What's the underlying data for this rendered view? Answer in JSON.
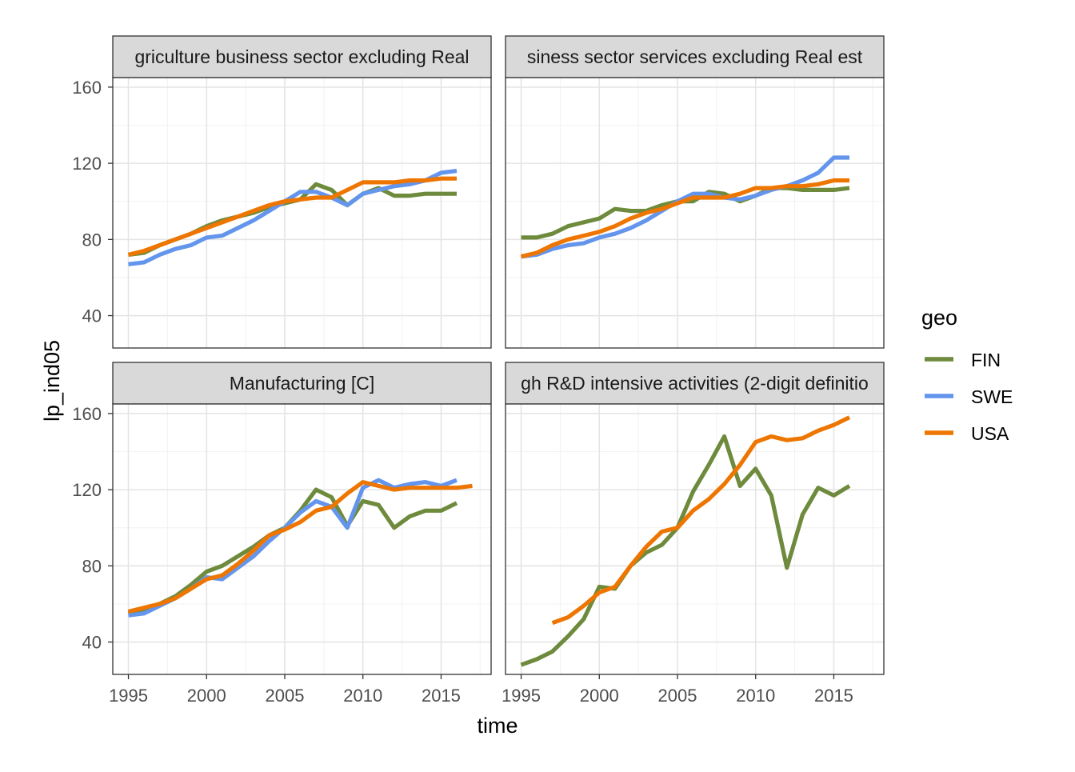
{
  "chart_data": {
    "type": "line",
    "layout": "facet-grid-2x2",
    "xlabel": "time",
    "ylabel": "lp_ind05",
    "xlim": [
      1994,
      2018.2
    ],
    "ylim": [
      23,
      165
    ],
    "x_ticks": [
      1995,
      2000,
      2005,
      2010,
      2015
    ],
    "x_tick_labels": [
      "1995",
      "2000",
      "2005",
      "2010",
      "2015"
    ],
    "y_ticks": [
      40,
      80,
      120,
      160
    ],
    "y_tick_labels": [
      "40",
      "80",
      "120",
      "160"
    ],
    "grid": true,
    "legend": {
      "title": "geo",
      "position": "right",
      "entries": [
        {
          "name": "FIN",
          "color": "#6e8b3d"
        },
        {
          "name": "SWE",
          "color": "#6495ed"
        },
        {
          "name": "USA",
          "color": "#ee7600"
        }
      ]
    },
    "panels": [
      {
        "strip": "griculture business sector excluding Real",
        "series": [
          {
            "name": "FIN",
            "color": "#6e8b3d",
            "x": [
              1995,
              1996,
              1997,
              1998,
              1999,
              2000,
              2001,
              2002,
              2003,
              2004,
              2005,
              2006,
              2007,
              2008,
              2009,
              2010,
              2011,
              2012,
              2013,
              2014,
              2015,
              2016
            ],
            "y": [
              72,
              73,
              77,
              80,
              83,
              87,
              90,
              92,
              94,
              97,
              99,
              101,
              109,
              106,
              98,
              104,
              107,
              103,
              103,
              104,
              104,
              104
            ]
          },
          {
            "name": "SWE",
            "color": "#6495ed",
            "x": [
              1995,
              1996,
              1997,
              1998,
              1999,
              2000,
              2001,
              2002,
              2003,
              2004,
              2005,
              2006,
              2007,
              2008,
              2009,
              2010,
              2011,
              2012,
              2013,
              2014,
              2015,
              2016
            ],
            "y": [
              67,
              68,
              72,
              75,
              77,
              81,
              82,
              86,
              90,
              95,
              100,
              105,
              105,
              102,
              98,
              104,
              106,
              108,
              109,
              111,
              115,
              116
            ]
          },
          {
            "name": "USA",
            "color": "#ee7600",
            "x": [
              1995,
              1996,
              1997,
              1998,
              1999,
              2000,
              2001,
              2002,
              2003,
              2004,
              2005,
              2006,
              2007,
              2008,
              2009,
              2010,
              2011,
              2012,
              2013,
              2014,
              2015,
              2016
            ],
            "y": [
              72,
              74,
              77,
              80,
              83,
              86,
              89,
              92,
              95,
              98,
              100,
              101,
              102,
              102,
              106,
              110,
              110,
              110,
              111,
              111,
              112,
              112
            ]
          }
        ]
      },
      {
        "strip": "siness sector services excluding Real est",
        "series": [
          {
            "name": "FIN",
            "color": "#6e8b3d",
            "x": [
              1995,
              1996,
              1997,
              1998,
              1999,
              2000,
              2001,
              2002,
              2003,
              2004,
              2005,
              2006,
              2007,
              2008,
              2009,
              2010,
              2011,
              2012,
              2013,
              2014,
              2015,
              2016
            ],
            "y": [
              81,
              81,
              83,
              87,
              89,
              91,
              96,
              95,
              95,
              98,
              100,
              100,
              105,
              104,
              100,
              103,
              107,
              107,
              106,
              106,
              106,
              107
            ]
          },
          {
            "name": "SWE",
            "color": "#6495ed",
            "x": [
              1995,
              1996,
              1997,
              1998,
              1999,
              2000,
              2001,
              2002,
              2003,
              2004,
              2005,
              2006,
              2007,
              2008,
              2009,
              2010,
              2011,
              2012,
              2013,
              2014,
              2015,
              2016
            ],
            "y": [
              71,
              72,
              75,
              77,
              78,
              81,
              83,
              86,
              90,
              95,
              100,
              104,
              104,
              102,
              101,
              103,
              106,
              108,
              111,
              115,
              123,
              123
            ]
          },
          {
            "name": "USA",
            "color": "#ee7600",
            "x": [
              1995,
              1996,
              1997,
              1998,
              1999,
              2000,
              2001,
              2002,
              2003,
              2004,
              2005,
              2006,
              2007,
              2008,
              2009,
              2010,
              2011,
              2012,
              2013,
              2014,
              2015,
              2016
            ],
            "y": [
              71,
              73,
              77,
              80,
              82,
              84,
              87,
              91,
              94,
              96,
              99,
              102,
              102,
              102,
              104,
              107,
              107,
              108,
              108,
              109,
              111,
              111
            ]
          }
        ]
      },
      {
        "strip": "Manufacturing [C]",
        "series": [
          {
            "name": "FIN",
            "color": "#6e8b3d",
            "x": [
              1995,
              1996,
              1997,
              1998,
              1999,
              2000,
              2001,
              2002,
              2003,
              2004,
              2005,
              2006,
              2007,
              2008,
              2009,
              2010,
              2011,
              2012,
              2013,
              2014,
              2015,
              2016
            ],
            "y": [
              55,
              57,
              60,
              64,
              70,
              77,
              80,
              85,
              90,
              96,
              100,
              109,
              120,
              116,
              101,
              114,
              112,
              100,
              106,
              109,
              109,
              113
            ]
          },
          {
            "name": "SWE",
            "color": "#6495ed",
            "x": [
              1995,
              1996,
              1997,
              1998,
              1999,
              2000,
              2001,
              2002,
              2003,
              2004,
              2005,
              2006,
              2007,
              2008,
              2009,
              2010,
              2011,
              2012,
              2013,
              2014,
              2015,
              2016
            ],
            "y": [
              54,
              55,
              59,
              63,
              68,
              74,
              73,
              79,
              85,
              93,
              100,
              108,
              114,
              111,
              100,
              121,
              125,
              121,
              123,
              124,
              122,
              125
            ]
          },
          {
            "name": "USA",
            "color": "#ee7600",
            "x": [
              1995,
              1996,
              1997,
              1998,
              1999,
              2000,
              2001,
              2002,
              2003,
              2004,
              2005,
              2006,
              2007,
              2008,
              2009,
              2010,
              2011,
              2012,
              2013,
              2014,
              2015,
              2016,
              2017
            ],
            "y": [
              56,
              58,
              60,
              63,
              68,
              73,
              75,
              81,
              88,
              96,
              99,
              103,
              109,
              111,
              118,
              124,
              122,
              120,
              121,
              121,
              121,
              121,
              122
            ]
          }
        ]
      },
      {
        "strip": "gh R&D intensive activities (2-digit definitio",
        "series": [
          {
            "name": "FIN",
            "color": "#6e8b3d",
            "x": [
              1995,
              1996,
              1997,
              1998,
              1999,
              2000,
              2001,
              2002,
              2003,
              2004,
              2005,
              2006,
              2007,
              2008,
              2009,
              2010,
              2011,
              2012,
              2013,
              2014,
              2015,
              2016
            ],
            "y": [
              28,
              31,
              35,
              43,
              52,
              69,
              68,
              80,
              87,
              91,
              100,
              119,
              133,
              148,
              122,
              131,
              117,
              79,
              107,
              121,
              117,
              122
            ]
          },
          {
            "name": "USA",
            "color": "#ee7600",
            "x": [
              1997,
              1998,
              1999,
              2000,
              2001,
              2002,
              2003,
              2004,
              2005,
              2006,
              2007,
              2008,
              2009,
              2010,
              2011,
              2012,
              2013,
              2014,
              2015,
              2016
            ],
            "y": [
              50,
              53,
              59,
              66,
              69,
              80,
              90,
              98,
              100,
              109,
              115,
              123,
              133,
              145,
              148,
              146,
              147,
              151,
              154,
              158
            ]
          }
        ]
      }
    ]
  }
}
